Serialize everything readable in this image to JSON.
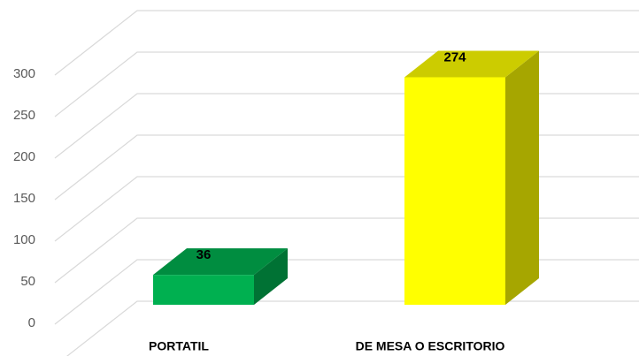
{
  "chart_data": {
    "type": "bar3d",
    "categories": [
      "PORTATIL",
      "DE MESA O ESCRITORIO"
    ],
    "values": [
      36,
      274
    ],
    "colors": [
      "#00b050",
      "#ffff00"
    ],
    "ylim": [
      0,
      350
    ],
    "yticks": [
      0,
      50,
      100,
      150,
      200,
      250,
      300
    ],
    "grid": true
  }
}
